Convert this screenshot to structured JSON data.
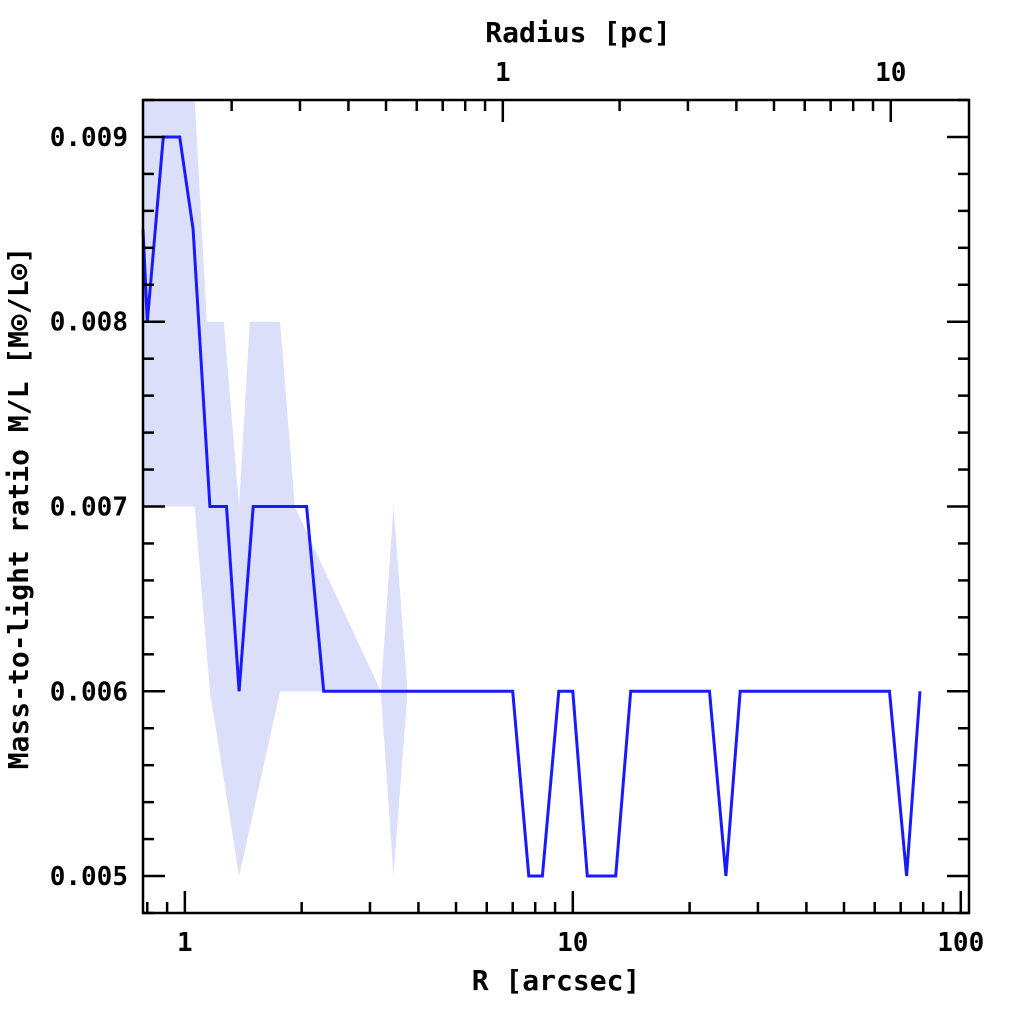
{
  "chart_data": {
    "type": "line",
    "xlabel": "R [arcsec]",
    "ylabel": "Mass-to-light ratio M/L [M⊙/L⊙]",
    "x2label": "Radius [pc]",
    "xscale": "log",
    "xlim": [
      0.78,
      105
    ],
    "ylim": [
      0.0048,
      0.0092
    ],
    "x_tick_labels": [
      {
        "value": 1,
        "label": "1"
      },
      {
        "value": 10,
        "label": "10"
      },
      {
        "value": 100,
        "label": "100"
      }
    ],
    "x2_tick_labels": [
      {
        "value_arcsec": 6.6,
        "label": "1"
      },
      {
        "value_arcsec": 66,
        "label": "10"
      }
    ],
    "y_tick_labels": [
      {
        "value": 0.005,
        "label": "0.005"
      },
      {
        "value": 0.006,
        "label": "0.006"
      },
      {
        "value": 0.007,
        "label": "0.007"
      },
      {
        "value": 0.008,
        "label": "0.008"
      },
      {
        "value": 0.009,
        "label": "0.009"
      }
    ],
    "series": [
      {
        "color": "#1a1aff",
        "points": [
          [
            0.78,
            0.0085
          ],
          [
            0.8,
            0.008
          ],
          [
            0.88,
            0.009
          ],
          [
            0.97,
            0.009
          ],
          [
            1.05,
            0.0085
          ],
          [
            1.16,
            0.007
          ],
          [
            1.28,
            0.007
          ],
          [
            1.38,
            0.006
          ],
          [
            1.5,
            0.007
          ],
          [
            2.06,
            0.007
          ],
          [
            2.28,
            0.006
          ],
          [
            7.0,
            0.006
          ],
          [
            7.7,
            0.005
          ],
          [
            8.35,
            0.005
          ],
          [
            9.2,
            0.006
          ],
          [
            10.0,
            0.006
          ],
          [
            10.9,
            0.005
          ],
          [
            12.9,
            0.005
          ],
          [
            14.1,
            0.006
          ],
          [
            22.5,
            0.006
          ],
          [
            24.8,
            0.005
          ],
          [
            27.0,
            0.006
          ],
          [
            65.5,
            0.006
          ],
          [
            72.5,
            0.005
          ],
          [
            78.5,
            0.006
          ]
        ]
      }
    ],
    "uncertainty_band": {
      "color": "#dcdffa",
      "upper": [
        [
          0.78,
          0.0092
        ],
        [
          0.97,
          0.0092
        ],
        [
          1.06,
          0.0092
        ],
        [
          1.14,
          0.008
        ],
        [
          1.26,
          0.008
        ],
        [
          1.38,
          0.007
        ],
        [
          1.47,
          0.008
        ],
        [
          1.76,
          0.008
        ],
        [
          1.92,
          0.007
        ],
        [
          3.2,
          0.006
        ],
        [
          3.45,
          0.007
        ],
        [
          3.75,
          0.006
        ]
      ],
      "lower": [
        [
          3.75,
          0.006
        ],
        [
          3.45,
          0.005
        ],
        [
          3.2,
          0.006
        ],
        [
          1.92,
          0.006
        ],
        [
          1.76,
          0.006
        ],
        [
          1.38,
          0.005
        ],
        [
          1.16,
          0.006
        ],
        [
          1.06,
          0.007
        ],
        [
          0.92,
          0.007
        ],
        [
          0.8,
          0.007
        ],
        [
          0.78,
          0.007
        ]
      ]
    }
  }
}
